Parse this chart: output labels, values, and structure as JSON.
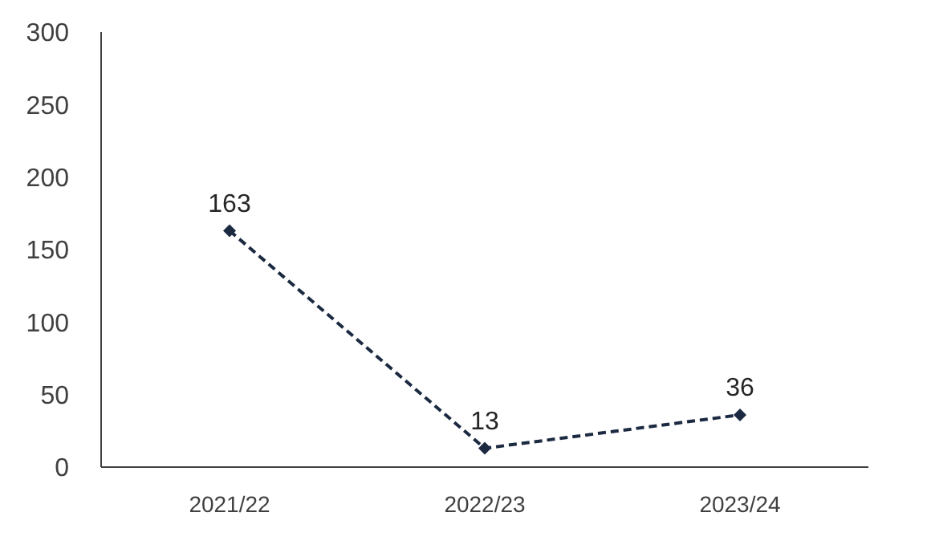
{
  "chart_data": {
    "type": "line",
    "categories": [
      "2021/22",
      "2022/23",
      "2023/24"
    ],
    "series": [
      {
        "color": "#1b2a41",
        "values": [
          163,
          13,
          36
        ]
      }
    ],
    "ylim": [
      0,
      300
    ],
    "yticks": [
      0,
      50,
      100,
      150,
      200,
      250,
      300
    ],
    "grid": false,
    "legend": false,
    "marker": "diamond",
    "line_style": "dashed",
    "data_labels": true
  }
}
